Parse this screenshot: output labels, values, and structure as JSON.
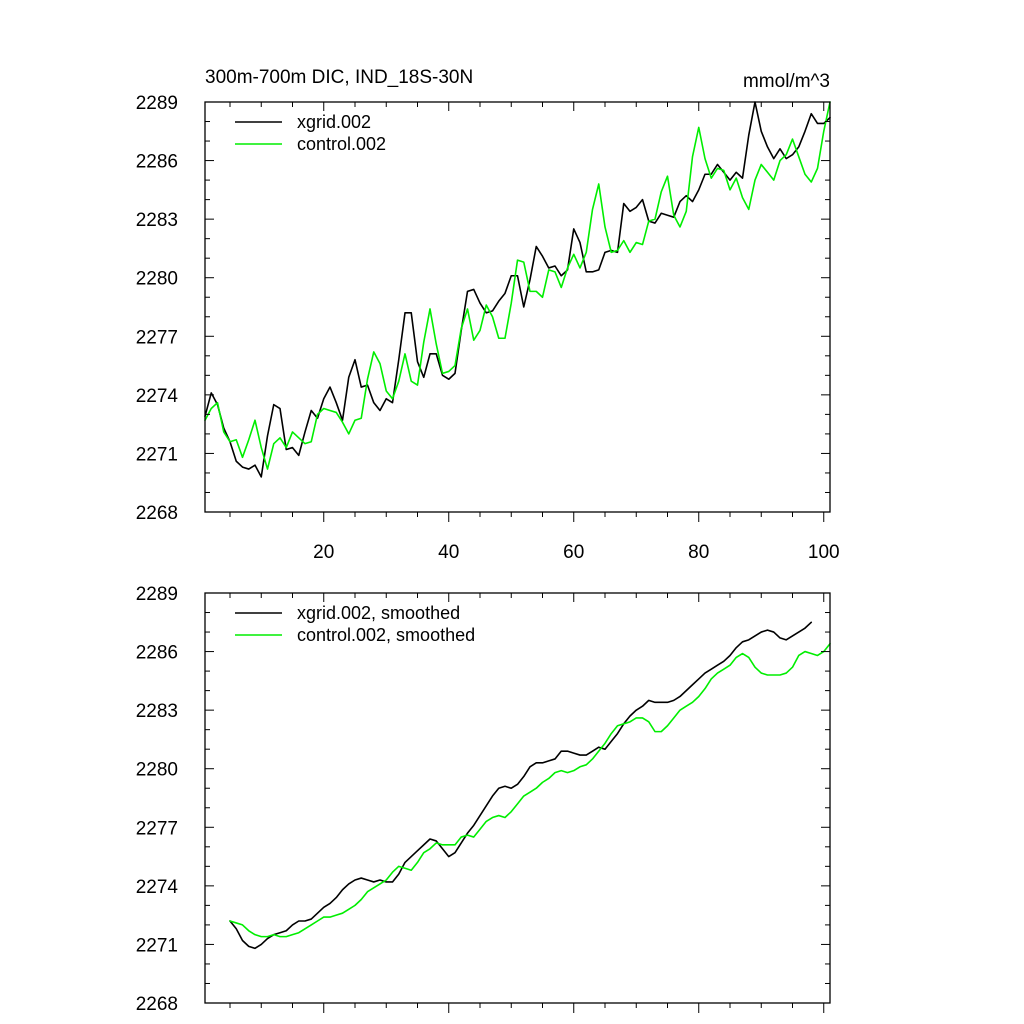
{
  "colors": {
    "xgrid": "#000000",
    "control": "#00ee00",
    "axis": "#000000",
    "background": "#ffffff"
  },
  "chart_data": [
    {
      "type": "line",
      "title": "300m-700m DIC, IND_18S-30N",
      "units": "mmol/m^3",
      "xlim": [
        1,
        101
      ],
      "ylim": [
        2268,
        2289
      ],
      "xticks": [
        20,
        40,
        60,
        80,
        100
      ],
      "xtick_labels": [
        "20",
        "40",
        "60",
        "80",
        "100"
      ],
      "yticks": [
        2268,
        2271,
        2274,
        2277,
        2280,
        2283,
        2286,
        2289
      ],
      "ytick_labels": [
        "2268",
        "2271",
        "2274",
        "2277",
        "2280",
        "2283",
        "2286",
        "2289"
      ],
      "legend": [
        "xgrid.002",
        "control.002"
      ],
      "series": [
        {
          "name": "xgrid.002",
          "color_key": "xgrid",
          "x_start": 1,
          "values": [
            2272.9,
            2274.1,
            2273.5,
            2272.3,
            2271.6,
            2270.6,
            2270.3,
            2270.2,
            2270.4,
            2269.8,
            2271.9,
            2273.5,
            2273.3,
            2271.2,
            2271.3,
            2270.9,
            2272.1,
            2273.2,
            2272.8,
            2273.8,
            2274.4,
            2273.6,
            2272.7,
            2274.9,
            2275.8,
            2274.4,
            2274.5,
            2273.6,
            2273.2,
            2273.8,
            2273.6,
            2275.8,
            2278.2,
            2278.2,
            2275.7,
            2274.9,
            2276.1,
            2276.1,
            2275.0,
            2274.8,
            2275.1,
            2277.3,
            2279.3,
            2279.4,
            2278.7,
            2278.2,
            2278.3,
            2278.8,
            2279.2,
            2280.1,
            2280.1,
            2278.5,
            2279.9,
            2281.6,
            2281.1,
            2280.5,
            2280.6,
            2280.1,
            2280.4,
            2282.5,
            2281.8,
            2280.3,
            2280.3,
            2280.4,
            2281.3,
            2281.4,
            2281.3,
            2283.8,
            2283.4,
            2283.6,
            2284.0,
            2282.9,
            2282.8,
            2283.3,
            2283.2,
            2283.1,
            2283.9,
            2284.2,
            2283.9,
            2284.5,
            2285.3,
            2285.3,
            2285.8,
            2285.4,
            2285.0,
            2285.4,
            2285.1,
            2287.3,
            2289.0,
            2287.5,
            2286.7,
            2286.1,
            2286.6,
            2286.1,
            2286.3,
            2286.7,
            2287.5,
            2288.4,
            2287.9,
            2287.9,
            2288.2
          ]
        },
        {
          "name": "control.002",
          "color_key": "control",
          "x_start": 1,
          "values": [
            2272.7,
            2273.3,
            2273.6,
            2272.1,
            2271.6,
            2271.7,
            2270.8,
            2271.7,
            2272.7,
            2271.3,
            2270.2,
            2271.5,
            2271.8,
            2271.3,
            2272.1,
            2271.8,
            2271.5,
            2271.6,
            2273.0,
            2273.3,
            2273.2,
            2273.1,
            2272.6,
            2272.0,
            2272.7,
            2272.8,
            2274.8,
            2276.2,
            2275.6,
            2274.2,
            2273.8,
            2274.7,
            2276.1,
            2274.7,
            2274.5,
            2276.7,
            2278.4,
            2276.6,
            2275.1,
            2275.2,
            2275.5,
            2277.4,
            2278.4,
            2276.8,
            2277.3,
            2278.6,
            2278.0,
            2276.9,
            2276.9,
            2278.7,
            2280.9,
            2280.8,
            2279.3,
            2279.3,
            2279.0,
            2280.4,
            2280.3,
            2279.5,
            2280.5,
            2281.2,
            2280.5,
            2281.3,
            2283.5,
            2284.8,
            2282.6,
            2281.3,
            2281.4,
            2281.9,
            2281.3,
            2281.8,
            2281.7,
            2282.9,
            2283.0,
            2284.4,
            2285.2,
            2283.2,
            2282.6,
            2283.4,
            2286.2,
            2287.7,
            2286.1,
            2285.1,
            2285.6,
            2285.5,
            2284.5,
            2285.1,
            2284.1,
            2283.5,
            2285.0,
            2285.8,
            2285.4,
            2285.0,
            2286.0,
            2286.3,
            2287.1,
            2286.2,
            2285.3,
            2284.9,
            2285.6,
            2287.5,
            2289.0
          ]
        }
      ]
    },
    {
      "type": "line",
      "title": "",
      "units": "",
      "xlim": [
        1,
        101
      ],
      "ylim": [
        2268,
        2289
      ],
      "xticks": [
        20,
        40,
        60,
        80,
        100
      ],
      "xtick_labels": [],
      "yticks": [
        2268,
        2271,
        2274,
        2277,
        2280,
        2283,
        2286,
        2289
      ],
      "ytick_labels": [
        "2268",
        "2271",
        "2274",
        "2277",
        "2280",
        "2283",
        "2286",
        "2289"
      ],
      "legend": [
        "xgrid.002, smoothed",
        "control.002, smoothed"
      ],
      "series": [
        {
          "name": "xgrid.002, smoothed",
          "color_key": "xgrid",
          "x_start": 5,
          "values": [
            2272.2,
            2271.8,
            2271.2,
            2270.9,
            2270.8,
            2271.0,
            2271.3,
            2271.5,
            2271.6,
            2271.7,
            2272.0,
            2272.2,
            2272.2,
            2272.3,
            2272.6,
            2272.9,
            2273.1,
            2273.4,
            2273.8,
            2274.1,
            2274.3,
            2274.4,
            2274.3,
            2274.2,
            2274.3,
            2274.2,
            2274.2,
            2274.6,
            2275.2,
            2275.5,
            2275.8,
            2276.1,
            2276.4,
            2276.3,
            2275.9,
            2275.5,
            2275.7,
            2276.2,
            2276.7,
            2277.1,
            2277.6,
            2278.1,
            2278.6,
            2279.0,
            2279.1,
            2279.0,
            2279.2,
            2279.6,
            2280.1,
            2280.3,
            2280.3,
            2280.4,
            2280.5,
            2280.9,
            2280.9,
            2280.8,
            2280.7,
            2280.7,
            2280.9,
            2281.1,
            2281.0,
            2281.4,
            2281.8,
            2282.3,
            2282.7,
            2283.0,
            2283.2,
            2283.5,
            2283.4,
            2283.4,
            2283.4,
            2283.5,
            2283.7,
            2284.0,
            2284.3,
            2284.6,
            2284.9,
            2285.1,
            2285.3,
            2285.5,
            2285.8,
            2286.2,
            2286.5,
            2286.6,
            2286.8,
            2287.0,
            2287.1,
            2287.0,
            2286.7,
            2286.6,
            2286.8,
            2287.0,
            2287.2,
            2287.5
          ]
        },
        {
          "name": "control.002, smoothed",
          "color_key": "control",
          "x_start": 5,
          "values": [
            2272.2,
            2272.1,
            2272.0,
            2271.7,
            2271.5,
            2271.4,
            2271.4,
            2271.5,
            2271.4,
            2271.4,
            2271.5,
            2271.6,
            2271.8,
            2272.0,
            2272.2,
            2272.4,
            2272.4,
            2272.5,
            2272.6,
            2272.8,
            2273.0,
            2273.3,
            2273.7,
            2273.9,
            2274.1,
            2274.3,
            2274.7,
            2275.0,
            2274.9,
            2274.8,
            2275.2,
            2275.7,
            2275.9,
            2276.2,
            2276.1,
            2276.1,
            2276.1,
            2276.5,
            2276.6,
            2276.5,
            2276.9,
            2277.3,
            2277.5,
            2277.6,
            2277.5,
            2277.8,
            2278.2,
            2278.6,
            2278.8,
            2279.0,
            2279.3,
            2279.5,
            2279.8,
            2279.9,
            2279.8,
            2279.9,
            2280.1,
            2280.2,
            2280.5,
            2280.9,
            2281.3,
            2281.8,
            2282.2,
            2282.3,
            2282.4,
            2282.6,
            2282.6,
            2282.4,
            2281.9,
            2281.9,
            2282.2,
            2282.6,
            2283.0,
            2283.2,
            2283.4,
            2283.7,
            2284.1,
            2284.6,
            2284.9,
            2285.1,
            2285.3,
            2285.7,
            2285.9,
            2285.7,
            2285.2,
            2284.9,
            2284.8,
            2284.8,
            2284.8,
            2284.9,
            2285.2,
            2285.8,
            2286.0,
            2285.9,
            2285.8,
            2286.0,
            2286.4
          ]
        }
      ]
    }
  ]
}
